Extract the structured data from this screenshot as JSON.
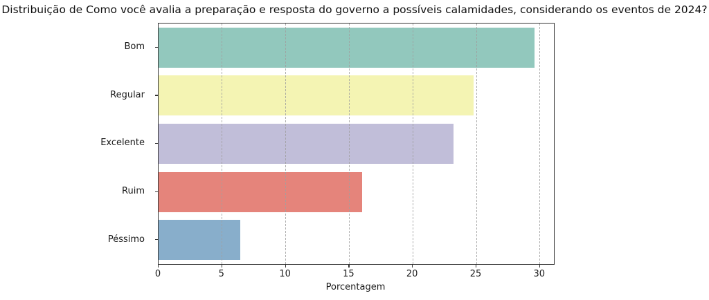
{
  "chart_data": {
    "type": "bar",
    "orientation": "horizontal",
    "title": "Distribuição de Como você avalia a preparação e resposta do governo a possíveis calamidades, considerando os eventos de 2024?",
    "xlabel": "Porcentagem",
    "ylabel": "",
    "categories": [
      "Bom",
      "Regular",
      "Excelente",
      "Ruim",
      "Péssimo"
    ],
    "values": [
      29.6,
      24.8,
      23.2,
      16.0,
      6.4
    ],
    "bar_colors": [
      "#92c8bd",
      "#f4f4b3",
      "#c1bed9",
      "#e5847b",
      "#88aecb"
    ],
    "xticks": [
      0,
      5,
      10,
      15,
      20,
      25,
      30
    ],
    "xlim": [
      0,
      31.1
    ],
    "grid": "vertical-dashed",
    "legend": "none",
    "colors": {
      "spine": "#333333",
      "gridline": "#a0a0a0",
      "text": "#1a1a1a",
      "background": "#ffffff"
    }
  }
}
